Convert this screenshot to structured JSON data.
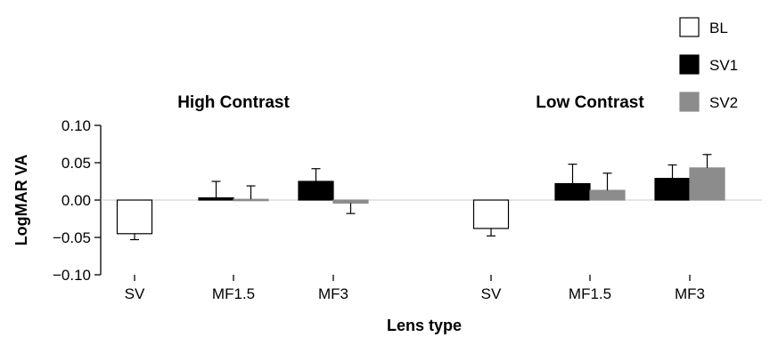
{
  "chart_data": {
    "type": "bar",
    "ylabel": "LogMAR VA",
    "xlabel": "Lens type",
    "ylim": [
      -0.1,
      0.1
    ],
    "yticks": [
      "0.10",
      "0.05",
      "0.00",
      "−0.05",
      "−0.10"
    ],
    "ytick_values": [
      0.1,
      0.05,
      0.0,
      -0.05,
      -0.1
    ],
    "legend": {
      "placement": "top-right",
      "entries": [
        {
          "label": "BL",
          "color": "#ffffff"
        },
        {
          "label": "SV1",
          "color": "#000000"
        },
        {
          "label": "SV2",
          "color": "#8c8c8c"
        }
      ]
    },
    "panels": [
      {
        "title": "High Contrast",
        "groups": [
          {
            "category": "SV",
            "bars": [
              {
                "series": "BL",
                "value": -0.045,
                "error": 0.008
              }
            ]
          },
          {
            "category": "MF1.5",
            "bars": [
              {
                "series": "SV1",
                "value": 0.003,
                "error": 0.022
              },
              {
                "series": "SV2",
                "value": 0.001,
                "error": 0.018
              }
            ]
          },
          {
            "category": "MF3",
            "bars": [
              {
                "series": "SV1",
                "value": 0.025,
                "error": 0.017
              },
              {
                "series": "SV2",
                "value": -0.004,
                "error": 0.014
              }
            ]
          }
        ]
      },
      {
        "title": "Low Contrast",
        "groups": [
          {
            "category": "SV",
            "bars": [
              {
                "series": "BL",
                "value": -0.038,
                "error": 0.01
              }
            ]
          },
          {
            "category": "MF1.5",
            "bars": [
              {
                "series": "SV1",
                "value": 0.022,
                "error": 0.026
              },
              {
                "series": "SV2",
                "value": 0.013,
                "error": 0.023
              }
            ]
          },
          {
            "category": "MF3",
            "bars": [
              {
                "series": "SV1",
                "value": 0.029,
                "error": 0.018
              },
              {
                "series": "SV2",
                "value": 0.043,
                "error": 0.018
              }
            ]
          }
        ]
      }
    ]
  }
}
